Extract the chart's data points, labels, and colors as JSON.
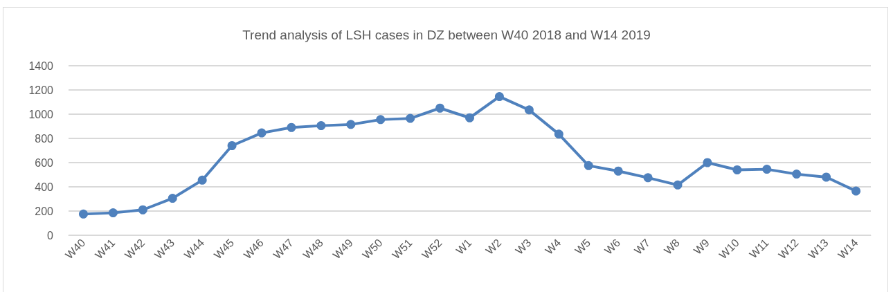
{
  "chart_data": {
    "type": "line",
    "title": "Trend analysis of LSH cases in DZ between W40 2018 and W14 2019",
    "categories": [
      "W40",
      "W41",
      "W42",
      "W43",
      "W44",
      "W45",
      "W46",
      "W47",
      "W48",
      "W49",
      "W50",
      "W51",
      "W52",
      "W1",
      "W2",
      "W3",
      "W4",
      "W5",
      "W6",
      "W7",
      "W8",
      "W9",
      "W10",
      "W11",
      "W12",
      "W13",
      "W14"
    ],
    "values": [
      175,
      185,
      210,
      305,
      455,
      740,
      845,
      890,
      905,
      915,
      955,
      965,
      1050,
      970,
      1145,
      1035,
      835,
      575,
      530,
      475,
      415,
      600,
      540,
      545,
      505,
      480,
      365
    ],
    "color": "#4f81bd",
    "ylim": [
      0,
      1400
    ],
    "yticks": [
      0,
      200,
      400,
      600,
      800,
      1000,
      1200,
      1400
    ],
    "grid": "y",
    "marker": "circle",
    "line_style": "solid"
  }
}
